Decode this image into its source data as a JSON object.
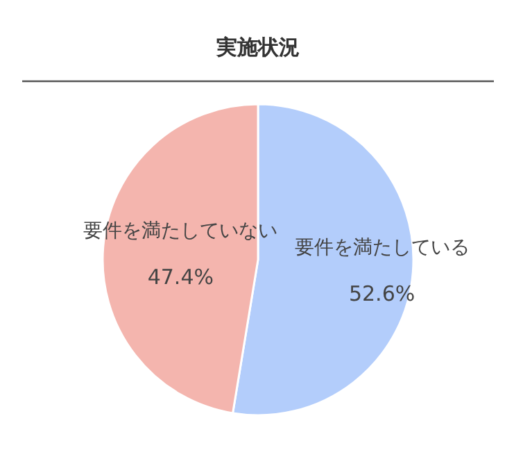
{
  "chart_data": {
    "type": "pie",
    "title": "実施状況",
    "categories": [
      "要件を満たしている",
      "要件を満たしていない"
    ],
    "values": [
      52.6,
      47.4
    ],
    "colors": [
      "#b3cdfb",
      "#f4b5ae"
    ],
    "value_labels": [
      "52.6%",
      "47.4%"
    ]
  }
}
